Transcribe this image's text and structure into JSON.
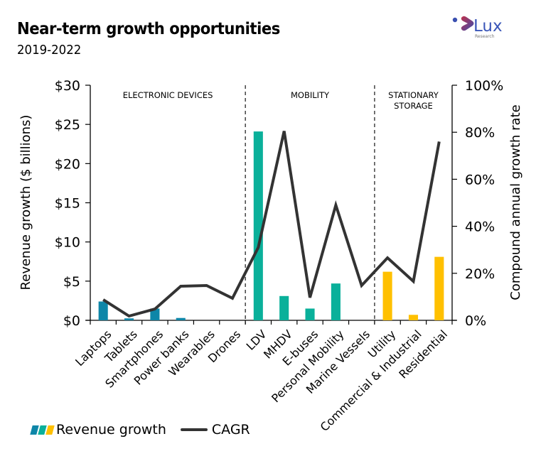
{
  "header": {
    "title": "Near-term growth opportunities",
    "subtitle": "2019-2022",
    "logo_text": "Lux",
    "logo_subtext": "Research"
  },
  "colors": {
    "electronic_devices": "#0E86A8",
    "mobility": "#0AB09A",
    "stationary_storage": "#FFC000",
    "cagr_line": "#333333"
  },
  "chart_data": {
    "type": "bar",
    "title": "Near-term growth opportunities",
    "subtitle": "2019-2022",
    "categories": [
      "Laptops",
      "Tablets",
      "Smartphones",
      "Power banks",
      "Wearables",
      "Drones",
      "LDV",
      "MHDV",
      "E-buses",
      "Personal Mobility",
      "Marine Vessels",
      "Utility",
      "Commercial & Industrial",
      "Residential"
    ],
    "groups": [
      {
        "label": "ELECTRONIC DEVICES",
        "label_lines": [
          "ELECTRONIC DEVICES"
        ],
        "start": 0,
        "end": 5,
        "color": "#0E86A8"
      },
      {
        "label": "MOBILITY",
        "label_lines": [
          "MOBILITY"
        ],
        "start": 6,
        "end": 10,
        "color": "#0AB09A"
      },
      {
        "label": "STATIONARY STORAGE",
        "label_lines": [
          "STATIONARY",
          "STORAGE"
        ],
        "start": 11,
        "end": 13,
        "color": "#FFC000"
      }
    ],
    "series": [
      {
        "name": "Revenue growth",
        "type": "bar",
        "axis": "left",
        "unit": "$ billions",
        "values": [
          2.4,
          0.25,
          1.5,
          0.3,
          0,
          0,
          24.1,
          3.1,
          1.5,
          4.7,
          0,
          6.2,
          0.7,
          8.1
        ]
      },
      {
        "name": "CAGR",
        "type": "line",
        "axis": "right",
        "unit": "%",
        "values": [
          8.8,
          1.8,
          4.8,
          14.5,
          14.8,
          9.4,
          31,
          80.5,
          9.7,
          49,
          14.8,
          26.6,
          16.6,
          76
        ]
      }
    ],
    "y_left": {
      "label": "Revenue growth ($ billions)",
      "min": 0,
      "max": 30,
      "ticks": [
        0,
        5,
        10,
        15,
        20,
        25,
        30
      ],
      "tick_labels": [
        "$0",
        "$5",
        "$10",
        "$15",
        "$20",
        "$25",
        "$30"
      ]
    },
    "y_right": {
      "label": "Compound annual growth rate",
      "min": 0,
      "max": 100,
      "ticks": [
        0,
        20,
        40,
        60,
        80,
        100
      ],
      "tick_labels": [
        "0%",
        "20%",
        "40%",
        "60%",
        "80%",
        "100%"
      ]
    },
    "xlabel": "",
    "grid": false,
    "legend": {
      "position": "bottom-left",
      "entries": [
        "Revenue growth",
        "CAGR"
      ]
    }
  }
}
